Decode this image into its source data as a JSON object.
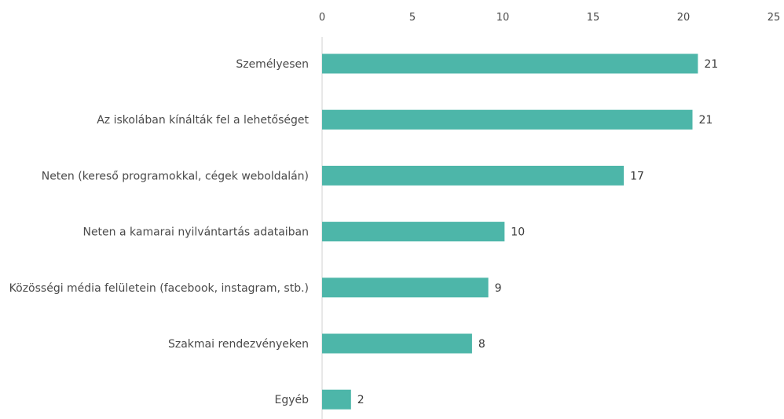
{
  "chart_data": {
    "type": "bar",
    "orientation": "horizontal",
    "categories": [
      "Személyesen",
      "Az iskolában kínálták fel a lehetőséget",
      "Neten (kereső programokkal, cégek weboldalán)",
      "Neten a kamarai nyilvántartás adataiban",
      "Közösségi média felületein (facebook, instagram, stb.)",
      "Szakmai rendezvényeken",
      "Egyéb"
    ],
    "values": [
      21,
      21,
      17,
      10,
      9,
      8,
      2
    ],
    "bar_values": [
      20.8,
      20.5,
      16.7,
      10.1,
      9.2,
      8.3,
      1.6
    ],
    "xlim": [
      0,
      25
    ],
    "xticks": [
      0,
      5,
      10,
      15,
      20,
      25
    ],
    "axis_position": "top",
    "grid": false,
    "legend": "none",
    "title": "",
    "xlabel": "",
    "ylabel": "",
    "bar_color": "#4db6a9"
  }
}
